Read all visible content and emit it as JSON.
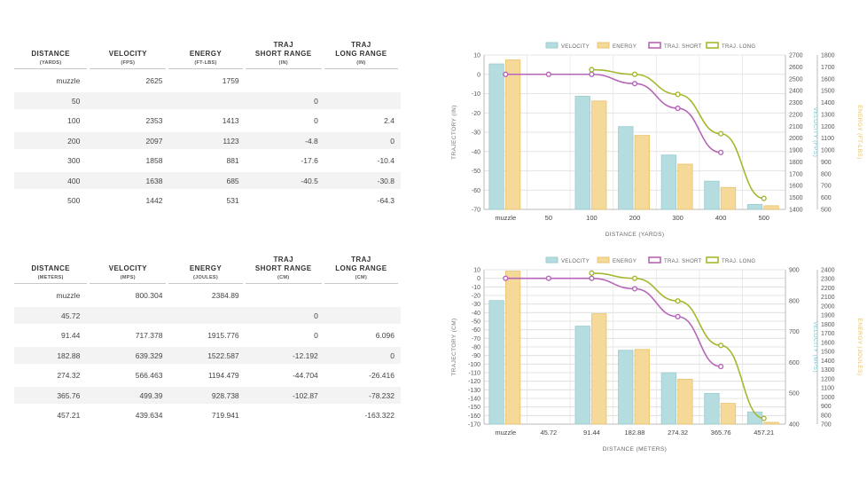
{
  "tables": [
    {
      "id": "imperial",
      "headers": [
        {
          "label": "DISTANCE",
          "unit": "(YARDS)"
        },
        {
          "label": "VELOCITY",
          "unit": "(FPS)"
        },
        {
          "label": "ENERGY",
          "unit": "(FT-LBS)"
        },
        {
          "label": "TRAJ\nSHORT RANGE",
          "unit": "(IN)"
        },
        {
          "label": "TRAJ\nLONG RANGE",
          "unit": "(IN)"
        }
      ],
      "rows": [
        [
          "muzzle",
          "2625",
          "1759",
          "",
          ""
        ],
        [
          "50",
          "",
          "",
          "0",
          ""
        ],
        [
          "100",
          "2353",
          "1413",
          "0",
          "2.4"
        ],
        [
          "200",
          "2097",
          "1123",
          "-4.8",
          "0"
        ],
        [
          "300",
          "1858",
          "881",
          "-17.6",
          "-10.4"
        ],
        [
          "400",
          "1638",
          "685",
          "-40.5",
          "-30.8"
        ],
        [
          "500",
          "1442",
          "531",
          "",
          "-64.3"
        ]
      ]
    },
    {
      "id": "metric",
      "headers": [
        {
          "label": "DISTANCE",
          "unit": "(METERS)"
        },
        {
          "label": "VELOCITY",
          "unit": "(MPS)"
        },
        {
          "label": "ENERGY",
          "unit": "(JOULES)"
        },
        {
          "label": "TRAJ\nSHORT RANGE",
          "unit": "(CM)"
        },
        {
          "label": "TRAJ\nLONG RANGE",
          "unit": "(CM)"
        }
      ],
      "rows": [
        [
          "muzzle",
          "800.304",
          "2384.89",
          "",
          ""
        ],
        [
          "45.72",
          "",
          "",
          "0",
          ""
        ],
        [
          "91.44",
          "717.378",
          "1915.776",
          "0",
          "6.096"
        ],
        [
          "182.88",
          "639.329",
          "1522.587",
          "-12.192",
          "0"
        ],
        [
          "274.32",
          "566.463",
          "1194.479",
          "-44.704",
          "-26.416"
        ],
        [
          "365.76",
          "499.39",
          "928.738",
          "-102.87",
          "-78.232"
        ],
        [
          "457.21",
          "439.634",
          "719.941",
          "",
          "-163.322"
        ]
      ]
    }
  ],
  "colors": {
    "velocity": "#b5dde0",
    "velocity_stroke": "#9ccbd0",
    "energy": "#f5d999",
    "energy_stroke": "#e8c36c",
    "short": "#b665b8",
    "long": "#a6b72e",
    "velocity_axis": "#7cc5cf",
    "energy_axis": "#e8c36c"
  },
  "chart_data": [
    {
      "type": "bar",
      "legend": [
        "VELOCITY",
        "ENERGY",
        "TRAJ. SHORT",
        "TRAJ. LONG"
      ],
      "categories": [
        "muzzle",
        "50",
        "100",
        "200",
        "300",
        "400",
        "500"
      ],
      "xlabel": "DISTANCE (YARDS)",
      "ylabel": "TRAJECTORY (IN)",
      "y2label": "VELOCITY (FPS)",
      "y3label": "ENERGY (FT-LBS)",
      "ylim": [
        -70,
        10
      ],
      "yticks": [
        "10",
        "0",
        "-10",
        "-20",
        "-30",
        "-40",
        "-50",
        "-60",
        "-70"
      ],
      "y2lim": [
        1400,
        2700
      ],
      "y2ticks": [
        "2700",
        "2600",
        "2500",
        "2400",
        "2300",
        "2200",
        "2100",
        "2000",
        "1900",
        "1800",
        "1700",
        "1600",
        "1500",
        "1400"
      ],
      "y3lim": [
        500,
        1800
      ],
      "y3ticks": [
        "1800",
        "1700",
        "1600",
        "1500",
        "1400",
        "1300",
        "1200",
        "1100",
        "1000",
        "900",
        "800",
        "700",
        "600",
        "500"
      ],
      "velocity": [
        2625,
        null,
        2353,
        2097,
        1858,
        1638,
        1442
      ],
      "energy": [
        1759,
        null,
        1413,
        1123,
        881,
        685,
        531
      ],
      "traj_short": [
        0,
        0,
        0,
        -4.8,
        -17.6,
        -40.5,
        null
      ],
      "traj_long": [
        null,
        null,
        2.4,
        0,
        -10.4,
        -30.8,
        -64.3
      ]
    },
    {
      "type": "bar",
      "legend": [
        "VELOCITY",
        "ENERGY",
        "TRAJ. SHORT",
        "TRAJ. LONG"
      ],
      "categories": [
        "muzzle",
        "45.72",
        "91.44",
        "182.88",
        "274.32",
        "365.76",
        "457.21"
      ],
      "xlabel": "DISTANCE (METERS)",
      "ylabel": "TRAJECTORY (CM)",
      "y2label": "VELOCITY (MPS)",
      "y3label": "ENERGY (JOULES)",
      "ylim": [
        -170,
        10
      ],
      "yticks": [
        "10",
        "0",
        "-10",
        "-20",
        "-30",
        "-40",
        "-50",
        "-60",
        "-70",
        "-80",
        "-90",
        "-100",
        "-110",
        "-120",
        "-130",
        "-140",
        "-150",
        "-160",
        "-170"
      ],
      "y2lim": [
        400,
        900
      ],
      "y2ticks": [
        "900",
        "800",
        "700",
        "600",
        "500",
        "400"
      ],
      "y3lim": [
        700,
        2400
      ],
      "y3ticks": [
        "2400",
        "2300",
        "2200",
        "2100",
        "2000",
        "1900",
        "1800",
        "1700",
        "1600",
        "1500",
        "1400",
        "1300",
        "1200",
        "1100",
        "1000",
        "900",
        "800",
        "700"
      ],
      "velocity": [
        800.304,
        null,
        717.378,
        639.329,
        566.463,
        499.39,
        439.634
      ],
      "energy": [
        2384.89,
        null,
        1915.776,
        1522.587,
        1194.479,
        928.738,
        719.941
      ],
      "traj_short": [
        0,
        0,
        0,
        -12.192,
        -44.704,
        -102.87,
        null
      ],
      "traj_long": [
        null,
        null,
        6.096,
        0,
        -26.416,
        -78.232,
        -163.322
      ]
    }
  ]
}
